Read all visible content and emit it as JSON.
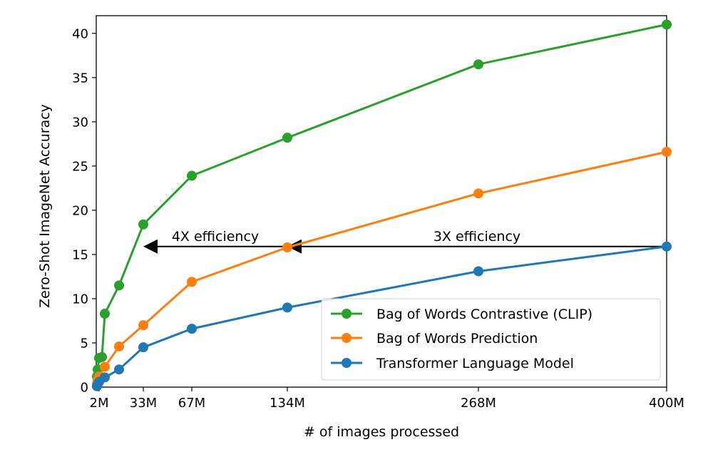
{
  "chart_data": {
    "type": "line",
    "xlabel": "# of images processed",
    "ylabel": "Zero-Shot ImageNet Accuracy",
    "xlim": [
      0,
      400
    ],
    "ylim": [
      0,
      42
    ],
    "x_ticks": [
      {
        "value": 2,
        "label": "2M"
      },
      {
        "value": 33,
        "label": "33M"
      },
      {
        "value": 67,
        "label": "67M"
      },
      {
        "value": 134,
        "label": "134M"
      },
      {
        "value": 268,
        "label": "268M"
      },
      {
        "value": 400,
        "label": "400M"
      }
    ],
    "y_ticks": [
      0,
      5,
      10,
      15,
      20,
      25,
      30,
      35,
      40
    ],
    "grid": false,
    "legend_position": "bottom-right",
    "series": [
      {
        "name": "Bag of Words Contrastive (CLIP)",
        "color": "#2ca02c",
        "x": [
          0.5,
          1,
          2,
          4,
          6,
          16,
          33,
          67,
          134,
          268,
          400
        ],
        "y": [
          1.2,
          2.0,
          3.3,
          3.4,
          8.3,
          11.5,
          18.4,
          23.9,
          28.2,
          36.5,
          41.0
        ]
      },
      {
        "name": "Bag of Words Prediction",
        "color": "#ff7f0e",
        "x": [
          0.5,
          1,
          2,
          6,
          16,
          33,
          67,
          134,
          268,
          400
        ],
        "y": [
          0.4,
          0.8,
          1.2,
          2.3,
          4.6,
          7.0,
          11.9,
          15.8,
          21.9,
          26.6
        ]
      },
      {
        "name": "Transformer Language Model",
        "color": "#1f77b4",
        "x": [
          0.5,
          1,
          2,
          6,
          16,
          33,
          67,
          134,
          268,
          400
        ],
        "y": [
          0.1,
          0.3,
          0.6,
          1.1,
          2.0,
          4.5,
          6.6,
          9.0,
          13.1,
          15.9
        ]
      }
    ],
    "annotations": [
      {
        "text": "4X efficiency",
        "x_start": 134,
        "x_end": 33,
        "y": 15.9
      },
      {
        "text": "3X efficiency",
        "x_start": 400,
        "x_end": 134,
        "y": 15.9
      }
    ]
  }
}
